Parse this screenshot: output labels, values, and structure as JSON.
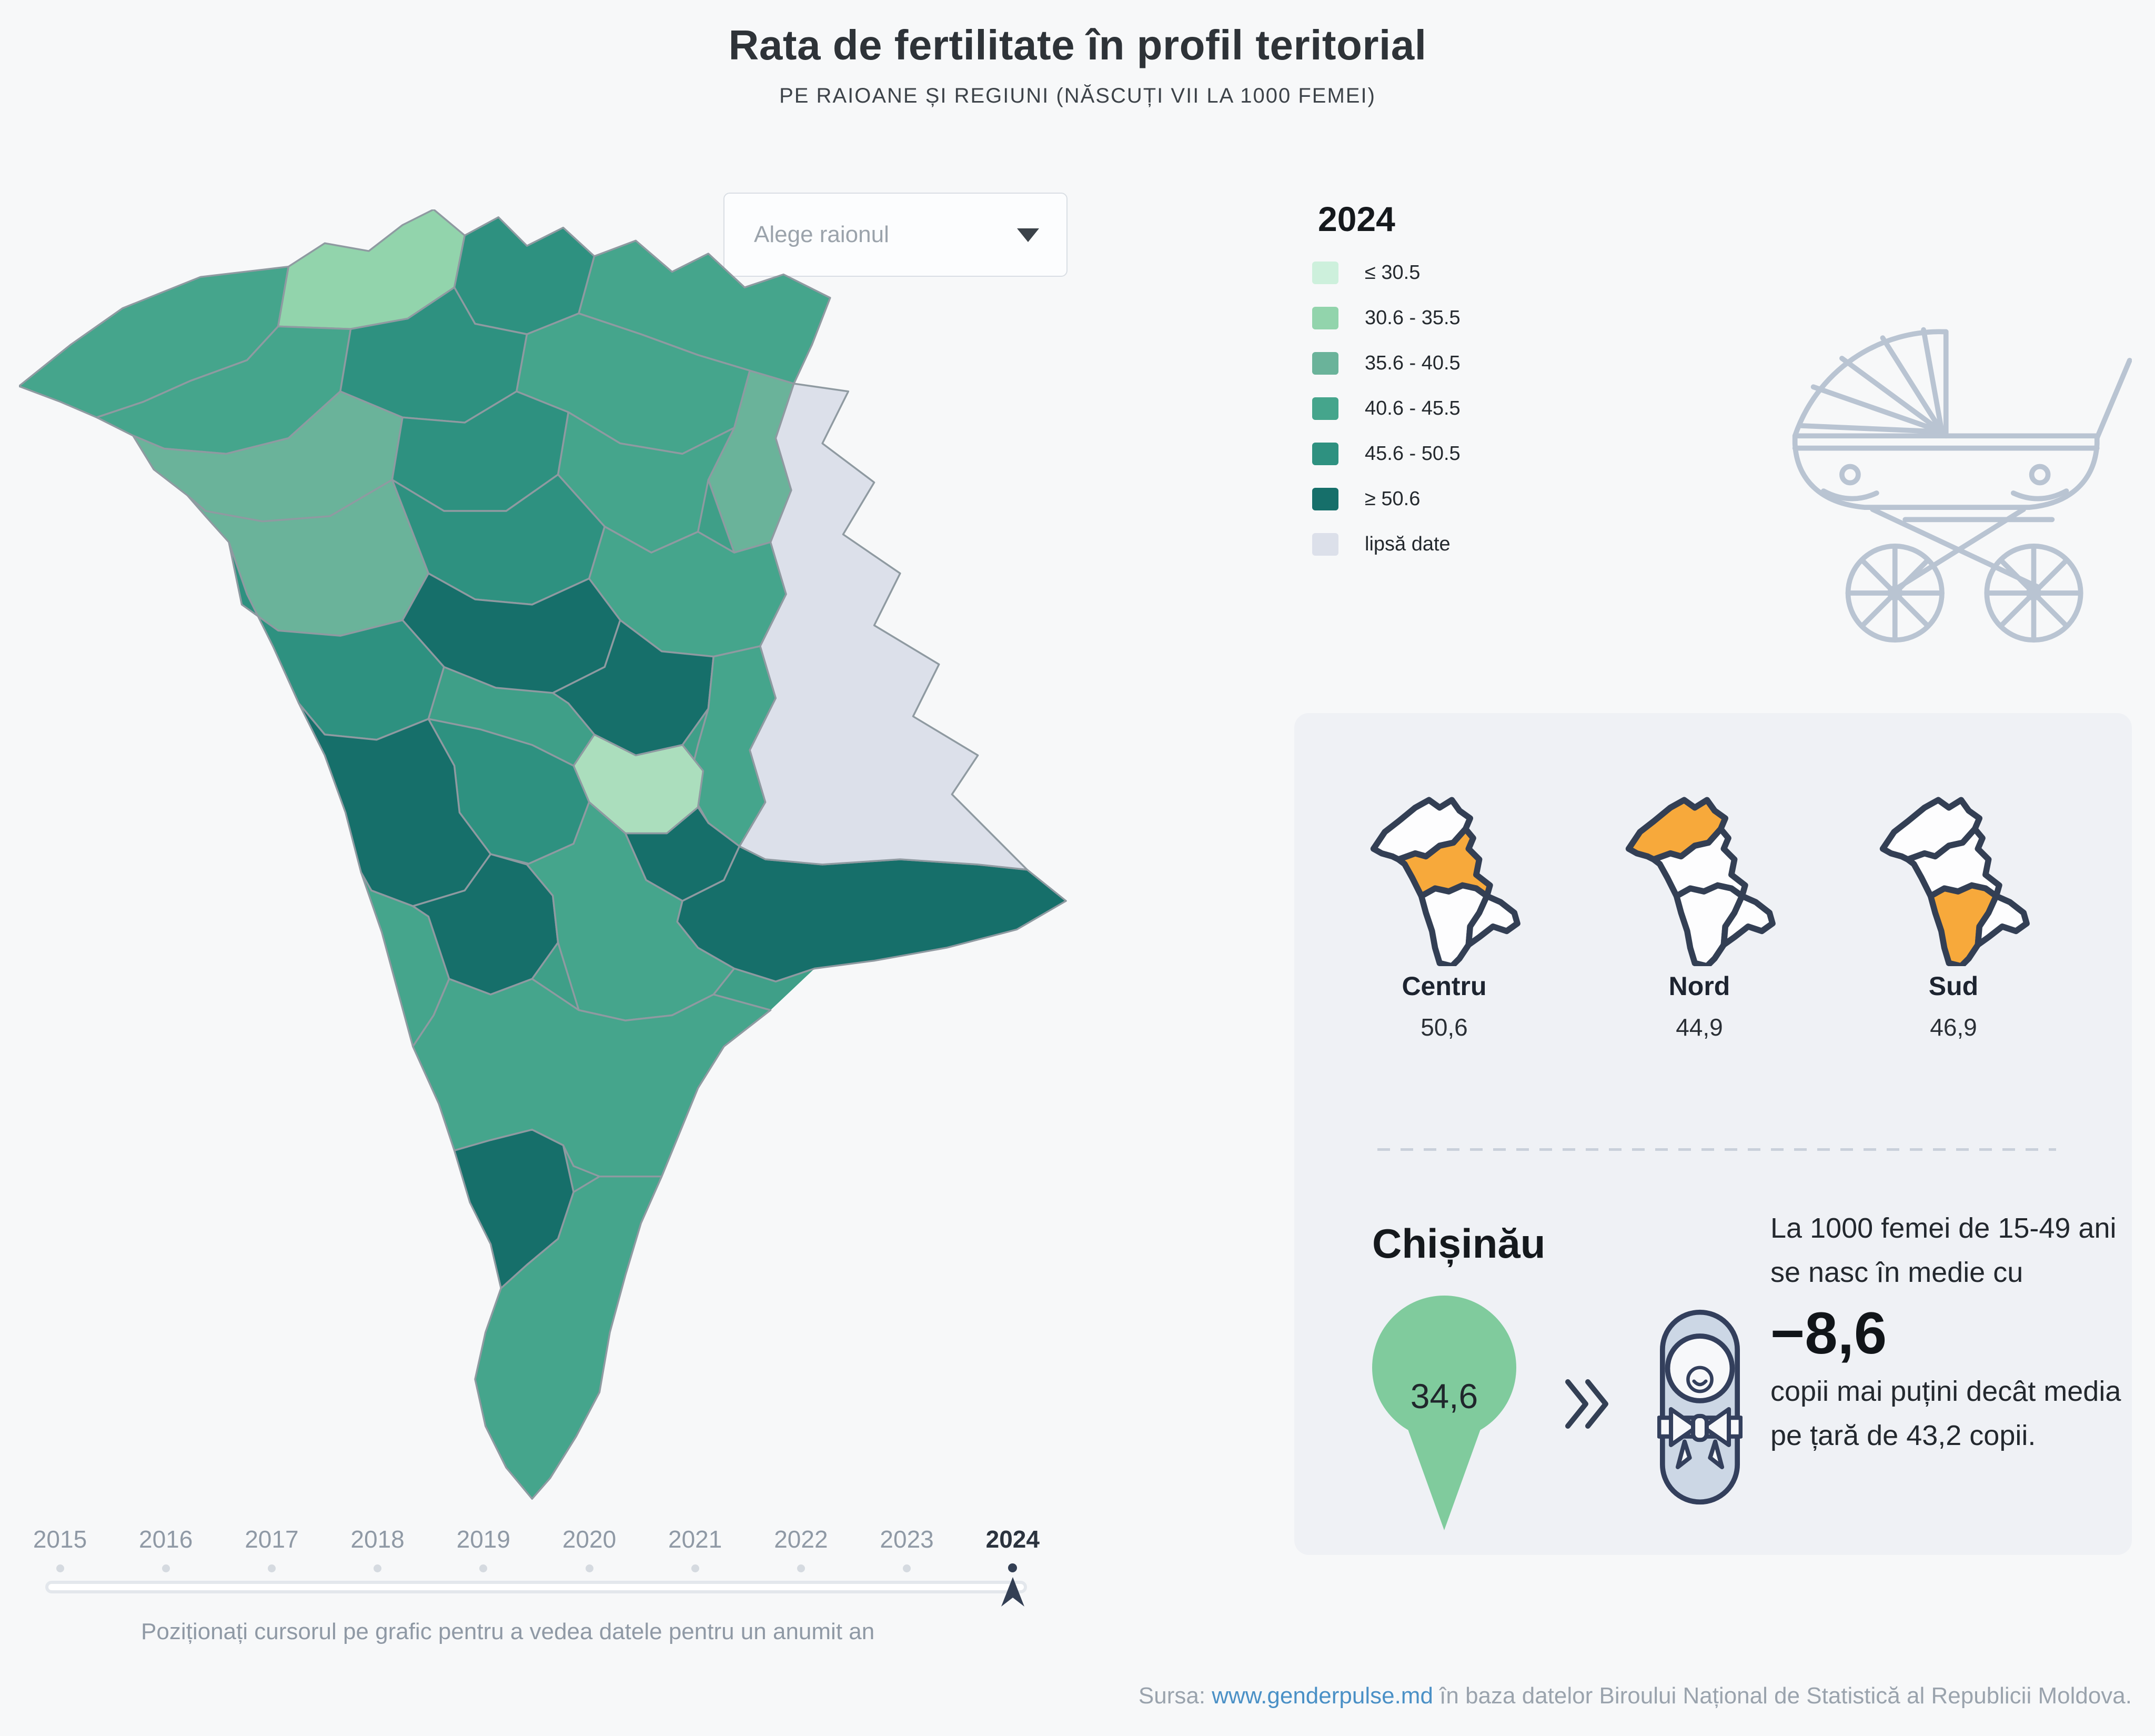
{
  "header": {
    "title": "Rata de fertilitate în profil teritorial",
    "subtitle": "PE RAIOANE ȘI REGIUNI (NĂSCUȚI VII LA 1000 FEMEI)"
  },
  "controls": {
    "district_dropdown": {
      "placeholder": "Alege raionul"
    }
  },
  "legend": {
    "year": "2024",
    "items": [
      {
        "label": "≤ 30.5",
        "color": "#cdf0dc"
      },
      {
        "label": "30.6 - 35.5",
        "color": "#92d4ac"
      },
      {
        "label": "35.6 - 40.5",
        "color": "#6ab39a"
      },
      {
        "label": "40.6 - 45.5",
        "color": "#45a58c"
      },
      {
        "label": "45.6 - 50.5",
        "color": "#2e9180"
      },
      {
        "label": "≥ 50.6",
        "color": "#166f6a"
      },
      {
        "label": "lipsă date",
        "color": "#dce0ea"
      }
    ]
  },
  "chart_data": {
    "type": "choropleth_map",
    "title": "Rata de fertilitate în profil teritorial",
    "subtitle": "PE RAIOANE ȘI REGIUNI (NĂSCUȚI VII LA 1000 FEMEI)",
    "year": 2024,
    "unit": "născuți vii la 1000 femei",
    "legend_classes": [
      "≤ 30.5",
      "30.6 - 35.5",
      "35.6 - 40.5",
      "40.6 - 45.5",
      "45.6 - 50.5",
      "≥ 50.6",
      "lipsă date"
    ],
    "regions": [
      {
        "name": "Centru",
        "value": 50.6
      },
      {
        "name": "Nord",
        "value": 44.9
      },
      {
        "name": "Sud",
        "value": 46.9
      }
    ],
    "chisinau": {
      "name": "Chișinău",
      "value": 34.6,
      "difference_vs_country": -8.6,
      "country_average": 43.2
    },
    "timeline_years": [
      2015,
      2016,
      2017,
      2018,
      2019,
      2020,
      2021,
      2022,
      2023,
      2024
    ],
    "selected_year": 2024,
    "legend_position": "right"
  },
  "regions_panel": {
    "items": [
      {
        "name": "Centru",
        "value": "50,6"
      },
      {
        "name": "Nord",
        "value": "44,9"
      },
      {
        "name": "Sud",
        "value": "46,9"
      }
    ]
  },
  "chisinau_block": {
    "name": "Chișinău",
    "value": "34,6",
    "note_intro": "La 1000 femei de 15-49 ani se nasc în medie cu",
    "big_number": "−8,6",
    "note_rest": "copii mai puțini decât media pe țară de 43,2 copii."
  },
  "timeline": {
    "years": [
      "2015",
      "2016",
      "2017",
      "2018",
      "2019",
      "2020",
      "2021",
      "2022",
      "2023",
      "2024"
    ],
    "selected": "2024",
    "hint": "Poziționați cursorul pe grafic pentru a vedea datele pentru un anumit an"
  },
  "footer": {
    "prefix": "Sursa: ",
    "link": "www.genderpulse.md",
    "suffix": " în baza datelor Biroului Național de Statistică al Republicii Moldova."
  },
  "colors": {
    "page_bg": "#f7f8f9",
    "panel_bg": "#eff1f5",
    "orange": "#f7a93b",
    "navy": "#333f54",
    "white": "#fdfdfe",
    "pin_green": "#80cb9d",
    "carriage_stroke": "#b9c4d2",
    "baby_fill": "#ccd7e5",
    "baby_light": "#f7f8fa",
    "link_blue": "#4a90c6"
  },
  "map": {
    "stroke": "#8f9aa1",
    "base_fill": "#3f9f88",
    "palette": {
      "c1": "#cdf0dc",
      "c2": "#92d4ac",
      "c3": "#6ab39a",
      "c4": "#45a58c",
      "c5": "#2e9180",
      "c6": "#166f6a",
      "nodata": "#dce0ea",
      "chisinau": "#abdebd"
    },
    "districts": {
      "briceni": "c4",
      "ocnita": "c2",
      "donduseni": "c5",
      "soroca": "c4",
      "edinet": "c4",
      "drochia": "c5",
      "floresti": "c4",
      "riscani": "c3",
      "balti": "c5",
      "rezina": "c3",
      "soldanesti": "c4",
      "telenesti": "c5",
      "orhei": "c4",
      "ungheni": "c3",
      "calarasi": "c6",
      "straseni": "c6",
      "nisporeni": "c5",
      "criuleni": "c4",
      "chisinau": "chisinau",
      "ialoveni": "c5",
      "anenii-noi": "c6",
      "hincesti": "c6",
      "leova": "c4",
      "comrat": "c6",
      "cimislia": "c4",
      "causeni-stefan-voda": "c6",
      "sud-mid": "c4",
      "cahul": "c6",
      "sud-tail": "c4",
      "transnistria": "nodata"
    }
  }
}
